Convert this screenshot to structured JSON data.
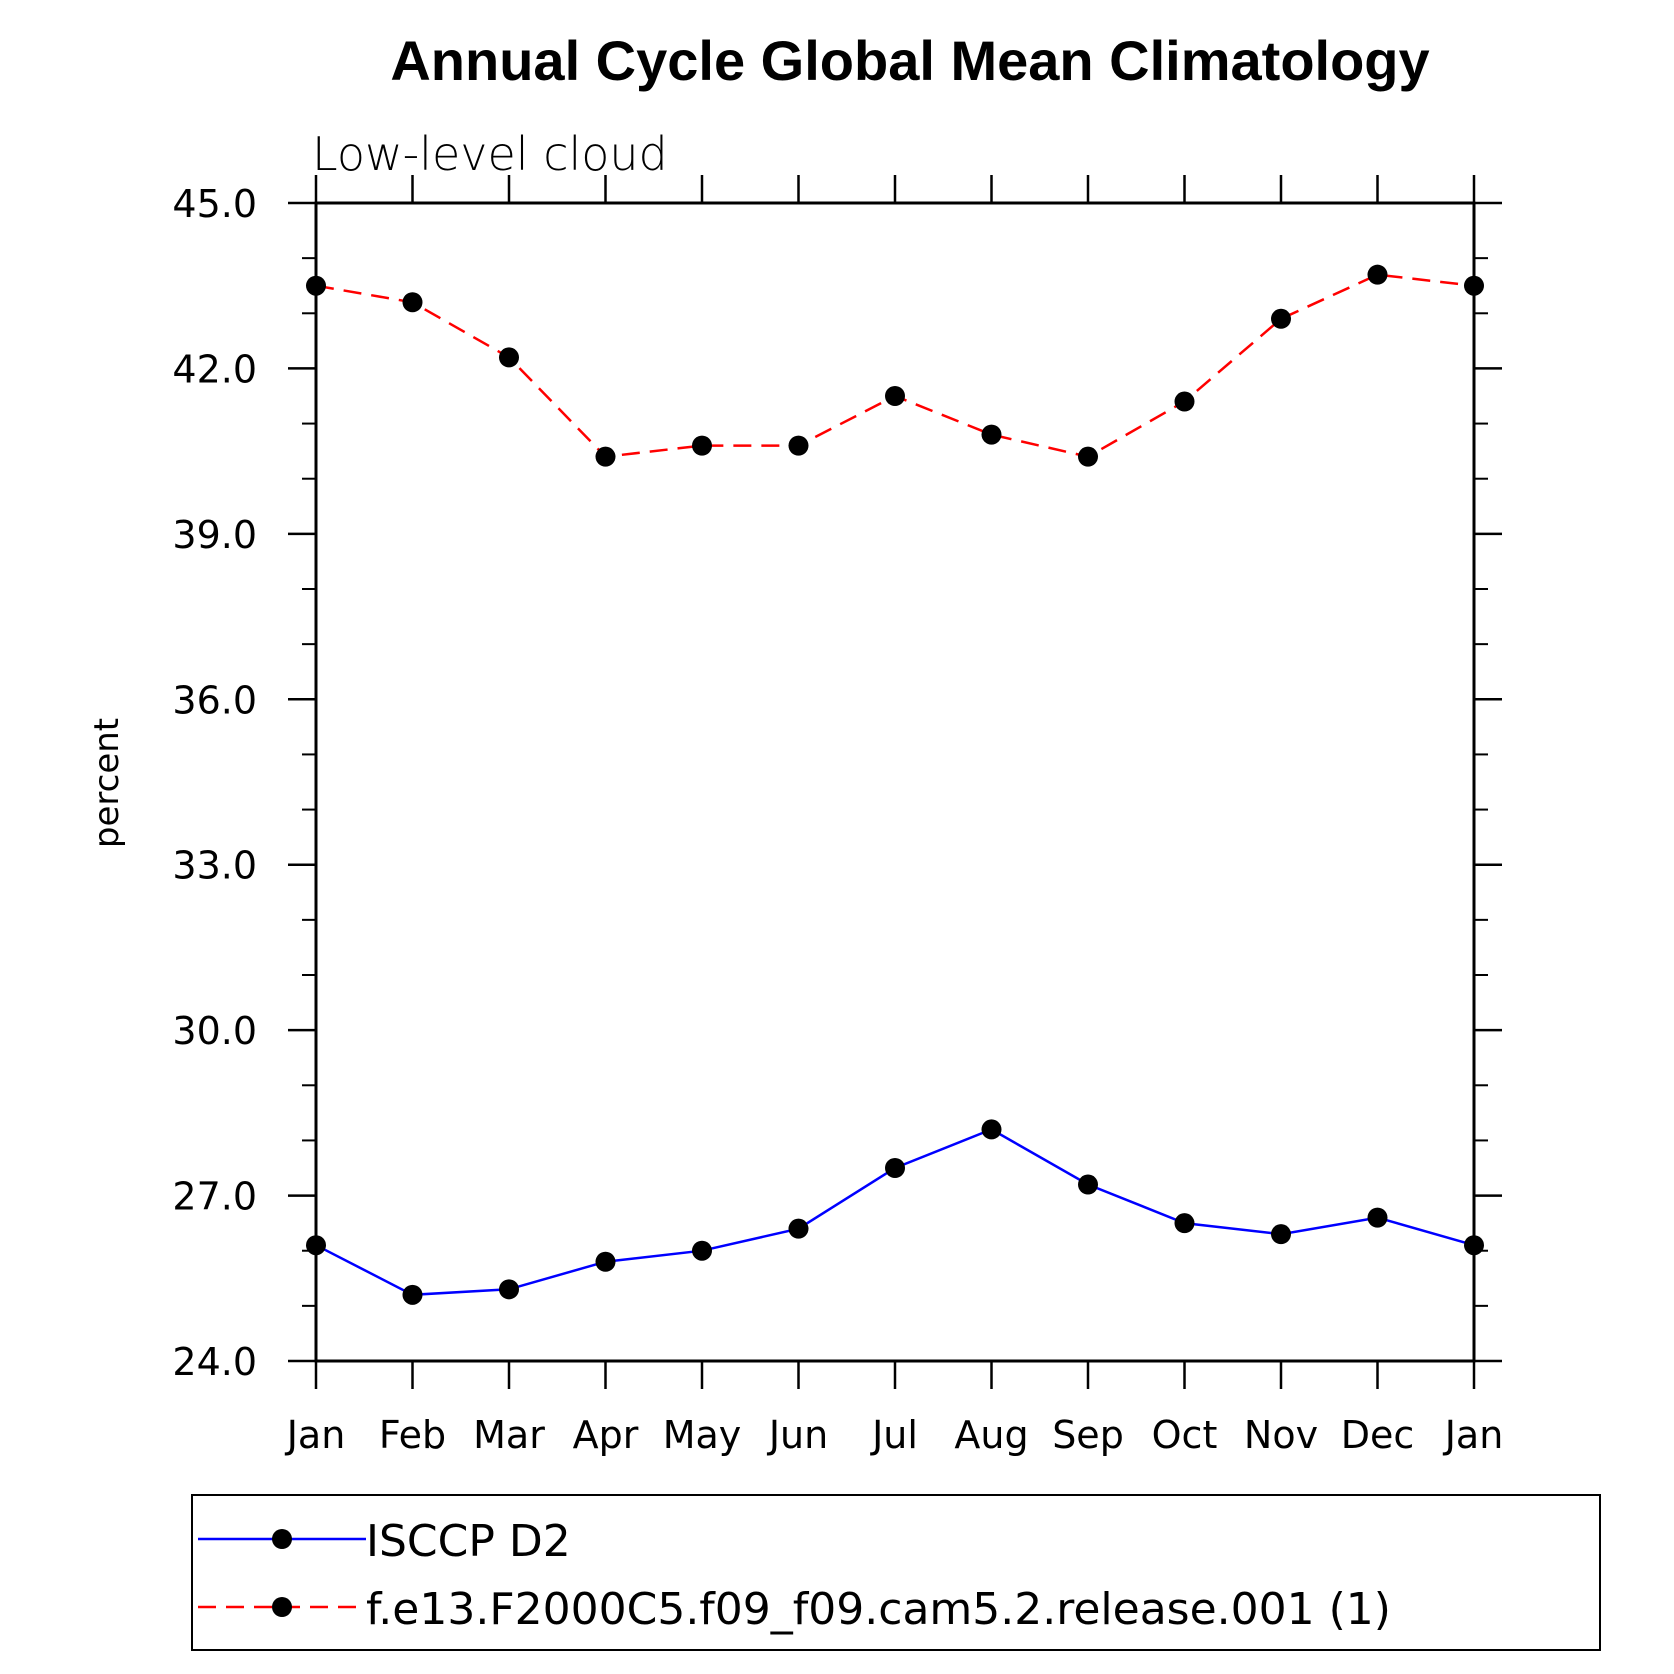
{
  "chart_data": {
    "type": "line",
    "title": "Annual Cycle Global Mean Climatology",
    "subtitle": "Low-level cloud",
    "ylabel": "percent",
    "xlabel": "",
    "categories": [
      "Jan",
      "Feb",
      "Mar",
      "Apr",
      "May",
      "Jun",
      "Jul",
      "Aug",
      "Sep",
      "Oct",
      "Nov",
      "Dec",
      "Jan"
    ],
    "ylim": [
      24.0,
      45.0
    ],
    "yticks": [
      "24.0",
      "27.0",
      "30.0",
      "33.0",
      "36.0",
      "39.0",
      "42.0",
      "45.0"
    ],
    "ytick_values": [
      24,
      27,
      30,
      33,
      36,
      39,
      42,
      45
    ],
    "series": [
      {
        "name": "ISCCP D2",
        "color": "#0000ff",
        "dash": "solid",
        "marker": "filled-circle",
        "values": [
          26.1,
          25.2,
          25.3,
          25.8,
          26.0,
          26.4,
          27.5,
          28.2,
          27.2,
          26.5,
          26.3,
          26.6,
          26.1
        ]
      },
      {
        "name": "f.e13.F2000C5.f09_f09.cam5.2.release.001 (1)",
        "color": "#ff0000",
        "dash": "dashed",
        "marker": "filled-circle",
        "values": [
          43.5,
          43.2,
          42.2,
          40.4,
          40.6,
          40.6,
          41.5,
          40.8,
          40.4,
          41.4,
          42.9,
          43.7,
          43.5
        ]
      }
    ],
    "grid": false,
    "legend_position": "bottom"
  }
}
